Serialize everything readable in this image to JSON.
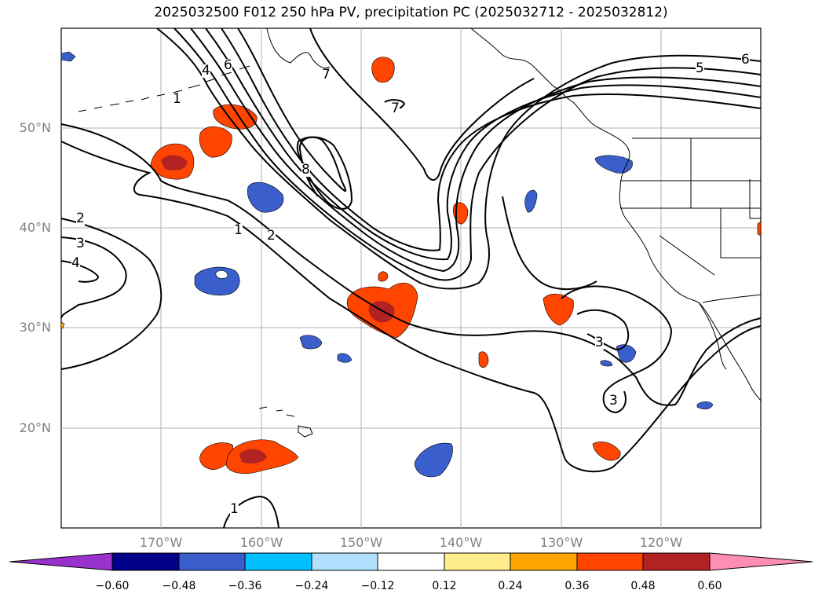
{
  "title": "2025032500 F012 250 hPa PV, precipitation PC (2025032712 - 2025032812)",
  "map": {
    "lat_labels": [
      "50°N",
      "40°N",
      "30°N",
      "20°N"
    ],
    "lon_labels": [
      "170°W",
      "160°W",
      "150°W",
      "140°W",
      "130°W",
      "120°W"
    ],
    "contour_labels": [
      "1",
      "2",
      "3",
      "4",
      "5",
      "6",
      "7",
      "8"
    ],
    "colors": {
      "pv_contour": "#000000",
      "coastline": "#000000",
      "grid": "#b0b0b0",
      "axis_label": "#7f7f7f"
    }
  },
  "colorbar": {
    "ticks": [
      "−0.60",
      "−0.48",
      "−0.36",
      "−0.24",
      "−0.12",
      "0.12",
      "0.24",
      "0.36",
      "0.48",
      "0.60"
    ],
    "colors": [
      "#9932cc",
      "#00008b",
      "#3a5fcd",
      "#00bfff",
      "#b0e2ff",
      "#ffffff",
      "#ffec8b",
      "#ffa500",
      "#ff4500",
      "#b22222",
      "#ff8eb4"
    ]
  }
}
